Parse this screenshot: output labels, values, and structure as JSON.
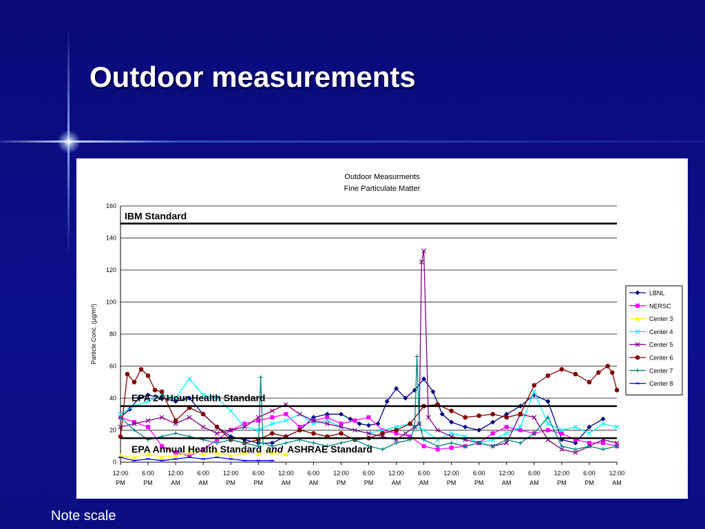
{
  "slide": {
    "title": "Outdoor measurements",
    "note": "Note scale"
  },
  "colors": {
    "background": "#0b0d82",
    "chart_background": "#ffffff"
  },
  "chart_data": {
    "type": "line",
    "title": "Outdoor Measurments",
    "subtitle": "Fine Particulate Matter",
    "ylabel": "Particle Conc. (μg/m³)",
    "xlabel": "",
    "ylim": [
      0,
      160
    ],
    "yticks": [
      0,
      20,
      40,
      60,
      80,
      100,
      120,
      140,
      160
    ],
    "xlim": [
      0,
      216
    ],
    "xticks": [
      {
        "x": 0,
        "line1": "12:00",
        "line2": "PM"
      },
      {
        "x": 12,
        "line1": "6:00",
        "line2": "PM"
      },
      {
        "x": 24,
        "line1": "12:00",
        "line2": "AM"
      },
      {
        "x": 36,
        "line1": "6:00",
        "line2": "AM"
      },
      {
        "x": 48,
        "line1": "12:00",
        "line2": "PM"
      },
      {
        "x": 60,
        "line1": "6:00",
        "line2": "PM"
      },
      {
        "x": 72,
        "line1": "12:00",
        "line2": "AM"
      },
      {
        "x": 84,
        "line1": "6:00",
        "line2": "AM"
      },
      {
        "x": 96,
        "line1": "12:00",
        "line2": "PM"
      },
      {
        "x": 108,
        "line1": "6:00",
        "line2": "PM"
      },
      {
        "x": 120,
        "line1": "12:00",
        "line2": "AM"
      },
      {
        "x": 132,
        "line1": "6:00",
        "line2": "AM"
      },
      {
        "x": 144,
        "line1": "12:00",
        "line2": "PM"
      },
      {
        "x": 156,
        "line1": "6:00",
        "line2": "PM"
      },
      {
        "x": 168,
        "line1": "12:00",
        "line2": "AM"
      },
      {
        "x": 180,
        "line1": "6:00",
        "line2": "AM"
      },
      {
        "x": 192,
        "line1": "12:00",
        "line2": "PM"
      },
      {
        "x": 204,
        "line1": "6:00",
        "line2": "PM"
      },
      {
        "x": 216,
        "line1": "12:00",
        "line2": "AM"
      }
    ],
    "grid": true,
    "legend_position": "right",
    "reference_lines": [
      {
        "label": "IBM Standard",
        "value": 149
      },
      {
        "label": "EPA 24 Hour Health Standard",
        "value": 35
      },
      {
        "label": "EPA Annual Health Standard",
        "label_italic": "and",
        "label_tail": "ASHRAE Standard",
        "value": 15
      }
    ],
    "series": [
      {
        "name": "LBNL",
        "color": "#000080",
        "marker": "diamond",
        "x": [
          0,
          4,
          8,
          12,
          18,
          24,
          30,
          36,
          42,
          48,
          54,
          60,
          66,
          72,
          78,
          84,
          90,
          96,
          100,
          104,
          108,
          112,
          116,
          120,
          124,
          128,
          132,
          136,
          140,
          144,
          150,
          156,
          162,
          168,
          174,
          180,
          186,
          192,
          198,
          204,
          210
        ],
        "y": [
          28,
          33,
          40,
          42,
          40,
          38,
          40,
          30,
          22,
          16,
          14,
          12,
          12,
          16,
          20,
          28,
          30,
          30,
          27,
          24,
          23,
          24,
          38,
          46,
          40,
          45,
          52,
          44,
          30,
          25,
          22,
          20,
          25,
          30,
          35,
          42,
          38,
          14,
          12,
          22,
          27
        ]
      },
      {
        "name": "NERSC",
        "color": "#ff00ff",
        "marker": "square",
        "x": [
          0,
          6,
          12,
          18,
          24,
          30,
          36,
          42,
          48,
          54,
          60,
          66,
          72,
          78,
          84,
          90,
          96,
          102,
          108,
          114,
          120,
          126,
          132,
          138,
          144,
          150,
          156,
          162,
          168,
          174,
          180,
          186,
          192,
          198,
          204,
          210,
          216
        ],
        "y": [
          28,
          25,
          22,
          10,
          6,
          4,
          8,
          14,
          20,
          24,
          26,
          28,
          30,
          22,
          26,
          28,
          24,
          26,
          28,
          20,
          18,
          16,
          10,
          8,
          9,
          10,
          12,
          18,
          22,
          20,
          18,
          20,
          18,
          14,
          12,
          12,
          10
        ]
      },
      {
        "name": "Center 3",
        "color": "#ffff00",
        "marker": "triangle",
        "x": [
          0,
          6,
          12,
          18,
          24,
          30,
          36,
          42,
          48,
          54,
          60,
          66,
          72
        ],
        "y": [
          4,
          3,
          5,
          3,
          4,
          6,
          5,
          6,
          4,
          6,
          5,
          6,
          5
        ]
      },
      {
        "name": "Center 4",
        "color": "#00ffff",
        "marker": "x",
        "x": [
          0,
          6,
          12,
          18,
          24,
          30,
          36,
          42,
          48,
          54,
          60,
          66,
          72,
          78,
          84,
          90,
          96,
          102,
          108,
          114,
          120,
          126,
          132,
          138,
          144,
          150,
          156,
          162,
          168,
          174,
          180,
          186,
          192,
          198,
          204,
          210,
          216
        ],
        "y": [
          30,
          35,
          38,
          42,
          40,
          52,
          42,
          40,
          32,
          22,
          20,
          24,
          26,
          30,
          24,
          26,
          22,
          20,
          18,
          20,
          22,
          24,
          20,
          14,
          18,
          16,
          12,
          14,
          18,
          22,
          44,
          24,
          20,
          22,
          18,
          24,
          22
        ]
      },
      {
        "name": "Center 5",
        "color": "#800080",
        "marker": "x",
        "x": [
          0,
          6,
          12,
          18,
          24,
          30,
          36,
          42,
          48,
          54,
          60,
          66,
          72,
          78,
          84,
          90,
          96,
          102,
          108,
          114,
          120,
          124,
          128,
          130,
          131,
          132,
          134,
          138,
          144,
          150,
          156,
          162,
          168,
          174,
          180,
          186,
          192,
          198,
          204,
          210,
          216
        ],
        "y": [
          22,
          24,
          26,
          28,
          24,
          28,
          22,
          18,
          20,
          22,
          28,
          32,
          36,
          30,
          26,
          24,
          22,
          20,
          18,
          16,
          14,
          18,
          22,
          24,
          125,
          132,
          28,
          20,
          16,
          14,
          12,
          10,
          12,
          30,
          28,
          14,
          8,
          6,
          10,
          14,
          12
        ]
      },
      {
        "name": "Center 6",
        "color": "#800000",
        "marker": "circle",
        "x": [
          0,
          3,
          6,
          9,
          12,
          15,
          18,
          24,
          30,
          36,
          42,
          48,
          54,
          60,
          66,
          72,
          78,
          84,
          90,
          96,
          102,
          108,
          114,
          120,
          126,
          132,
          138,
          144,
          150,
          156,
          162,
          168,
          174,
          180,
          186,
          192,
          198,
          204,
          208,
          212,
          214,
          216
        ],
        "y": [
          16,
          55,
          50,
          58,
          54,
          45,
          44,
          26,
          34,
          30,
          22,
          14,
          12,
          14,
          18,
          16,
          20,
          18,
          16,
          18,
          14,
          15,
          18,
          20,
          24,
          35,
          36,
          32,
          28,
          29,
          30,
          28,
          30,
          48,
          54,
          58,
          55,
          50,
          56,
          60,
          56,
          45
        ]
      },
      {
        "name": "Center 7",
        "color": "#008080",
        "marker": "plus",
        "x": [
          0,
          6,
          12,
          18,
          24,
          30,
          36,
          42,
          48,
          54,
          60,
          61,
          62,
          66,
          72,
          78,
          84,
          90,
          96,
          102,
          108,
          114,
          120,
          126,
          128,
          129,
          130,
          132,
          138,
          144,
          150,
          156,
          162,
          168,
          174,
          180,
          186,
          192,
          198,
          204,
          210,
          216
        ],
        "y": [
          28,
          20,
          14,
          16,
          18,
          16,
          14,
          12,
          14,
          12,
          10,
          53,
          12,
          10,
          12,
          14,
          12,
          10,
          12,
          14,
          10,
          8,
          12,
          14,
          22,
          66,
          24,
          14,
          10,
          12,
          10,
          12,
          10,
          14,
          12,
          18,
          28,
          10,
          8,
          10,
          8,
          10
        ]
      },
      {
        "name": "Center 8",
        "color": "#0000ff",
        "marker": "dash",
        "x": [
          0,
          6,
          12,
          18,
          24,
          30,
          36,
          42,
          48,
          54,
          60,
          66
        ],
        "y": [
          3,
          1,
          2,
          1,
          2,
          3,
          2,
          3,
          2,
          1,
          1,
          1
        ]
      }
    ]
  }
}
